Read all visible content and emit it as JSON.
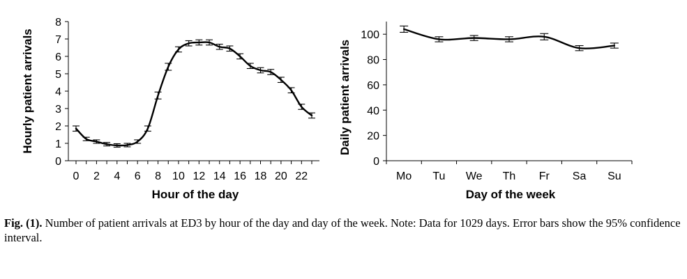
{
  "chart_data": [
    {
      "type": "line",
      "title": "",
      "xlabel": "Hour of the day",
      "ylabel": "Hourly patient arrivals",
      "x": [
        0,
        1,
        2,
        3,
        4,
        5,
        6,
        7,
        8,
        9,
        10,
        11,
        12,
        13,
        14,
        15,
        16,
        17,
        18,
        19,
        20,
        21,
        22,
        23
      ],
      "xticks": [
        "0",
        "2",
        "4",
        "6",
        "8",
        "10",
        "12",
        "14",
        "16",
        "18",
        "20",
        "22"
      ],
      "yticks": [
        "0",
        "1",
        "2",
        "3",
        "4",
        "5",
        "6",
        "7",
        "8"
      ],
      "ylim": [
        0,
        8
      ],
      "series": [
        {
          "values": [
            1.85,
            1.25,
            1.1,
            0.95,
            0.88,
            0.9,
            1.1,
            1.85,
            3.75,
            5.4,
            6.4,
            6.75,
            6.8,
            6.8,
            6.55,
            6.45,
            6.0,
            5.45,
            5.2,
            5.1,
            4.65,
            4.05,
            3.1,
            2.6
          ],
          "ci_low": [
            1.7,
            1.15,
            1.0,
            0.85,
            0.78,
            0.8,
            1.0,
            1.7,
            3.55,
            5.2,
            6.25,
            6.6,
            6.65,
            6.65,
            6.4,
            6.3,
            5.85,
            5.3,
            5.05,
            4.95,
            4.5,
            3.9,
            2.95,
            2.45
          ],
          "ci_high": [
            2.0,
            1.35,
            1.2,
            1.05,
            0.98,
            1.0,
            1.2,
            2.0,
            3.95,
            5.6,
            6.55,
            6.9,
            6.95,
            6.95,
            6.7,
            6.6,
            6.15,
            5.6,
            5.35,
            5.25,
            4.8,
            4.2,
            3.25,
            2.75
          ]
        }
      ],
      "grid": false
    },
    {
      "type": "line",
      "title": "",
      "xlabel": "Day of the week",
      "ylabel": "Daily patient arrivals",
      "categories": [
        "Mo",
        "Tu",
        "We",
        "Th",
        "Fr",
        "Sa",
        "Su"
      ],
      "yticks": [
        "0",
        "20",
        "40",
        "60",
        "80",
        "100"
      ],
      "ylim": [
        0,
        110
      ],
      "series": [
        {
          "values": [
            104,
            96,
            97,
            96,
            98,
            89,
            91
          ],
          "ci_low": [
            101.5,
            94,
            95,
            94,
            95.5,
            87,
            89
          ],
          "ci_high": [
            106.5,
            98,
            99,
            98,
            100.5,
            91,
            93
          ]
        }
      ],
      "grid": false
    }
  ],
  "caption": {
    "label": "Fig. (1).",
    "text": " Number of patient arrivals at ED3 by hour of the day and day of the week. Note: Data for 1029 days. Error bars show the 95% confidence interval."
  }
}
